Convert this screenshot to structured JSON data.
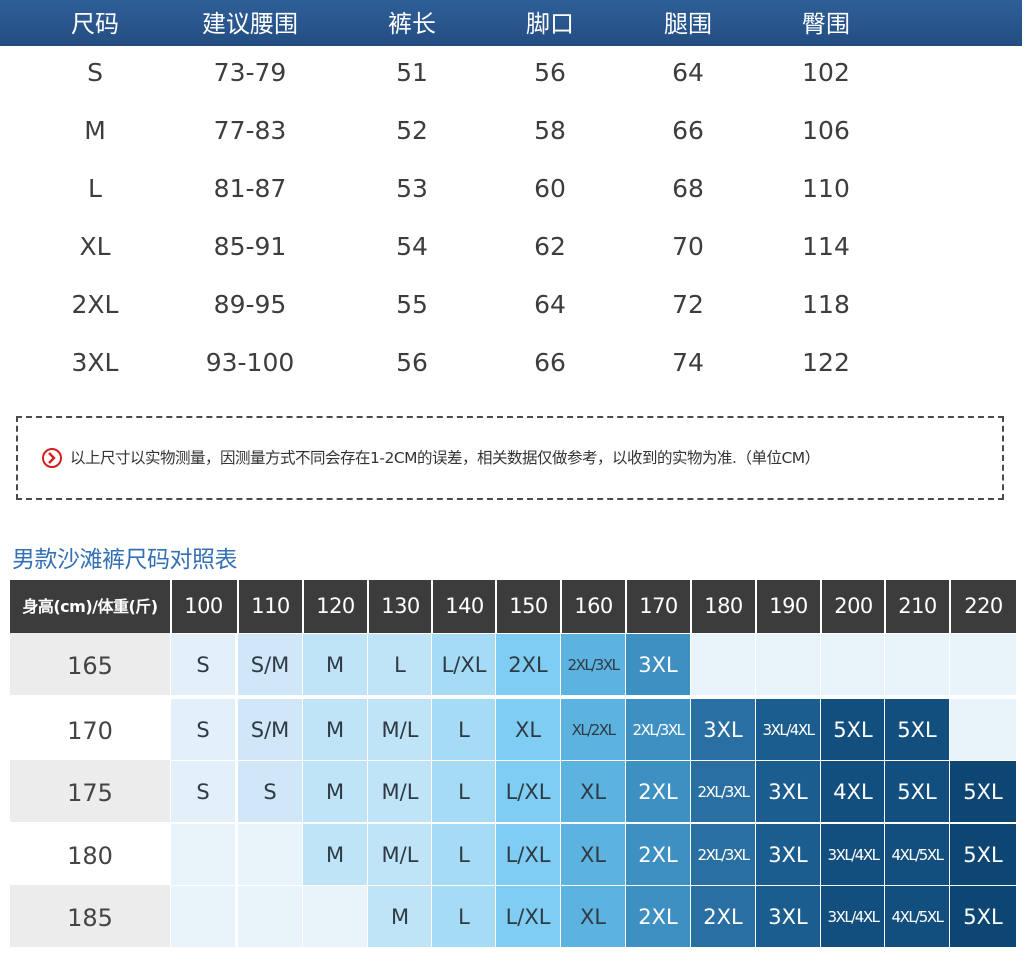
{
  "size_table": {
    "headers": [
      "尺码",
      "建议腰围",
      "裤长",
      "脚口",
      "腿围",
      "臀围"
    ],
    "rows": [
      [
        "S",
        "73-79",
        "51",
        "56",
        "64",
        "102"
      ],
      [
        "M",
        "77-83",
        "52",
        "58",
        "66",
        "106"
      ],
      [
        "L",
        "81-87",
        "53",
        "60",
        "68",
        "110"
      ],
      [
        "XL",
        "85-91",
        "54",
        "62",
        "70",
        "114"
      ],
      [
        "2XL",
        "89-95",
        "55",
        "64",
        "72",
        "118"
      ],
      [
        "3XL",
        "93-100",
        "56",
        "66",
        "74",
        "122"
      ]
    ]
  },
  "notice": {
    "icon": "chevron-right-circle-icon",
    "text": "以上尺寸以实物测量，因测量方式不同会存在1-2CM的误差，相关数据仅做参考，以收到的实物为准.（单位CM）"
  },
  "chart": {
    "title": "男款沙滩裤尺码对照表",
    "corner_label": "身高(cm)/体重(斤)",
    "weights": [
      "100",
      "110",
      "120",
      "130",
      "140",
      "150",
      "160",
      "170",
      "180",
      "190",
      "200",
      "210",
      "220"
    ],
    "rows": [
      {
        "height": "165",
        "sizes": [
          "S",
          "S/M",
          "M",
          "L",
          "L/XL",
          "2XL",
          "2XL/3XL",
          "3XL",
          "",
          "",
          "",
          "",
          ""
        ]
      },
      {
        "height": "170",
        "sizes": [
          "S",
          "S/M",
          "M",
          "M/L",
          "L",
          "XL",
          "XL/2XL",
          "2XL/3XL",
          "3XL",
          "3XL/4XL",
          "5XL",
          "5XL",
          ""
        ]
      },
      {
        "height": "175",
        "sizes": [
          "S",
          "S",
          "M",
          "M/L",
          "L",
          "L/XL",
          "XL",
          "2XL",
          "2XL/3XL",
          "3XL",
          "4XL",
          "5XL",
          "5XL"
        ]
      },
      {
        "height": "180",
        "sizes": [
          "",
          "",
          "M",
          "M/L",
          "L",
          "L/XL",
          "XL",
          "2XL",
          "2XL/3XL",
          "3XL",
          "3XL/4XL",
          "4XL/5XL",
          "5XL"
        ]
      },
      {
        "height": "185",
        "sizes": [
          "",
          "",
          "",
          "M",
          "L",
          "L/XL",
          "XL",
          "2XL",
          "2XL",
          "3XL",
          "3XL/4XL",
          "4XL/5XL",
          "5XL"
        ]
      }
    ],
    "colors": {
      "header_bg": "#3c3c3c",
      "label_bg_light": "#ececec",
      "empty_cell": "#e8f3fa",
      "size_scale": [
        "#e4f0f9",
        "#cfe7f6",
        "#bfe3f7",
        "#a6dbf5",
        "#7fcdf2",
        "#5db3df",
        "#3e8fc2",
        "#2a6fa2",
        "#1c5d8f",
        "#124e7e",
        "#0e4673"
      ]
    }
  }
}
